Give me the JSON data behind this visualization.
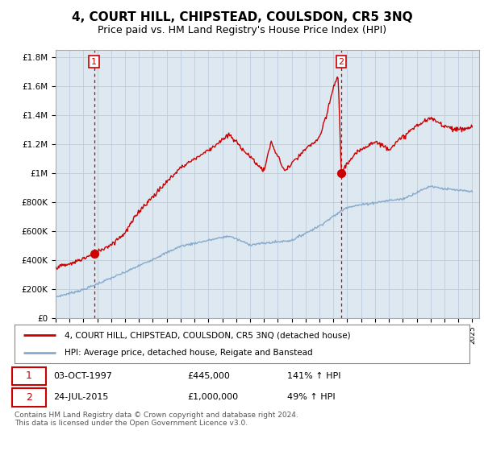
{
  "title": "4, COURT HILL, CHIPSTEAD, COULSDON, CR5 3NQ",
  "subtitle": "Price paid vs. HM Land Registry's House Price Index (HPI)",
  "ylabel_ticks": [
    "£0",
    "£200K",
    "£400K",
    "£600K",
    "£800K",
    "£1M",
    "£1.2M",
    "£1.4M",
    "£1.6M",
    "£1.8M"
  ],
  "ytick_values": [
    0,
    200000,
    400000,
    600000,
    800000,
    1000000,
    1200000,
    1400000,
    1600000,
    1800000
  ],
  "ylim": [
    0,
    1850000
  ],
  "xlim_start": 1995.0,
  "xlim_end": 2025.5,
  "marker1_x": 1997.76,
  "marker1_y": 445000,
  "marker2_x": 2015.56,
  "marker2_y": 1000000,
  "legend_line1": "4, COURT HILL, CHIPSTEAD, COULSDON, CR5 3NQ (detached house)",
  "legend_line2": "HPI: Average price, detached house, Reigate and Banstead",
  "footer": "Contains HM Land Registry data © Crown copyright and database right 2024.\nThis data is licensed under the Open Government Licence v3.0.",
  "line_color_red": "#cc0000",
  "line_color_blue": "#88aacc",
  "bg_plot_color": "#dde8f0",
  "background_color": "#ffffff",
  "grid_color": "#bbccdd",
  "title_fontsize": 11,
  "subtitle_fontsize": 9,
  "annotation_box_color": "#cc0000"
}
